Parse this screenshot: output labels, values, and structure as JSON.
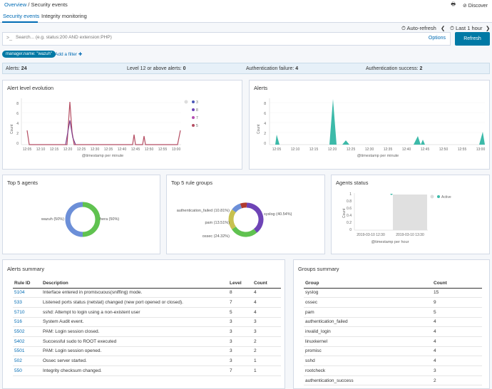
{
  "breadcrumb": {
    "root": "Overview",
    "sep": " / ",
    "current": "Security events"
  },
  "top_actions": {
    "print_icon": "print-icon",
    "discover": "Discover"
  },
  "tabs": [
    {
      "label": "Security events"
    },
    {
      "label": "Integrity monitoring"
    }
  ],
  "timebar": {
    "auto_refresh": "Auto-refresh",
    "range": "Last 1 hour"
  },
  "search": {
    "placeholder": "Search... (e.g. status:200 AND extension:PHP)",
    "options": "Options",
    "refresh": "Refresh"
  },
  "filters": {
    "pill": "manager.name: \"wazuh\"",
    "add": "Add a filter"
  },
  "stats": [
    {
      "label": "Alerts:",
      "value": "24"
    },
    {
      "label": "Level 12 or above alerts:",
      "value": "0"
    },
    {
      "label": "Authentication failure:",
      "value": "4"
    },
    {
      "label": "Authentication success:",
      "value": "2"
    }
  ],
  "colors": {
    "accent": "#006bb4",
    "teal": "#3cbaa9",
    "line1": "#b54e63",
    "line2": "#7e3f8e",
    "purple": "#6e44b6",
    "green": "#60c250",
    "olive": "#c7c150",
    "blue": "#6c8fd8",
    "red": "#b03a2e"
  },
  "alert_level": {
    "title": "Alert level evolution",
    "xlabel": "@timestamp per minute",
    "ylabel": "Count",
    "yticks": [
      "8",
      "6",
      "4",
      "2",
      "0"
    ],
    "xticks": [
      "12:05",
      "12:10",
      "12:15",
      "12:20",
      "12:25",
      "12:30",
      "12:35",
      "12:40",
      "12:45",
      "12:50",
      "12:55",
      "13:00"
    ],
    "legend": [
      "3",
      "8",
      "7",
      "5"
    ]
  },
  "alerts_chart": {
    "title": "Alerts",
    "xlabel": "@timestamp per minute",
    "ylabel": "Count",
    "yticks": [
      "8",
      "6",
      "4",
      "2",
      "0"
    ],
    "xticks": [
      "12:05",
      "12:10",
      "12:15",
      "12:20",
      "12:25",
      "12:30",
      "12:35",
      "12:40",
      "12:45",
      "12:50",
      "12:55",
      "13:00"
    ]
  },
  "top_agents": {
    "title": "Top 5 agents",
    "left_label": "wazuh (50%)",
    "right_label": "hera (50%)"
  },
  "top_groups": {
    "title": "Top 5 rule groups",
    "labels": {
      "auth": "authentication_failed (10.81%)",
      "pam": "pam (13.51%)",
      "ossec": "ossec (24.32%)",
      "syslog": "syslog (40.54%)"
    }
  },
  "agents_status": {
    "title": "Agents status",
    "ylabel": "Count",
    "xlabel": "@timestamp per hour",
    "yticks": [
      "1",
      "0.8",
      "0.6",
      "0.4",
      "0.2",
      "0"
    ],
    "xticks": [
      "2019-03-10 12:30",
      "2019-03-10 13:30"
    ],
    "legend": "Active"
  },
  "alerts_summary": {
    "title": "Alerts summary",
    "headers": [
      "Rule ID",
      "Description",
      "Level",
      "Count"
    ],
    "rows": [
      [
        "5104",
        "Interface entered in promiscuous(sniffing) mode.",
        "8",
        "4"
      ],
      [
        "533",
        "Listened ports status (netstat) changed (new port opened or closed).",
        "7",
        "4"
      ],
      [
        "5710",
        "sshd: Attempt to login using a non-existent user",
        "5",
        "4"
      ],
      [
        "516",
        "System Audit event.",
        "3",
        "3"
      ],
      [
        "5502",
        "PAM: Login session closed.",
        "3",
        "3"
      ],
      [
        "5402",
        "Successful sudo to ROOT executed",
        "3",
        "2"
      ],
      [
        "5501",
        "PAM: Login session opened.",
        "3",
        "2"
      ],
      [
        "502",
        "Ossec server started.",
        "3",
        "1"
      ],
      [
        "550",
        "Integrity checksum changed.",
        "7",
        "1"
      ]
    ]
  },
  "groups_summary": {
    "title": "Groups summary",
    "headers": [
      "Group",
      "Count"
    ],
    "rows": [
      [
        "syslog",
        "15"
      ],
      [
        "ossec",
        "9"
      ],
      [
        "pam",
        "5"
      ],
      [
        "authentication_failed",
        "4"
      ],
      [
        "invalid_login",
        "4"
      ],
      [
        "linuxkernel",
        "4"
      ],
      [
        "promisc",
        "4"
      ],
      [
        "sshd",
        "4"
      ],
      [
        "rootcheck",
        "3"
      ],
      [
        "authentication_success",
        "2"
      ]
    ]
  }
}
